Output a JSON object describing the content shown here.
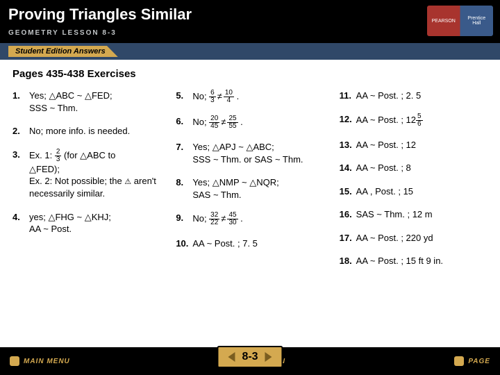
{
  "header": {
    "title": "Proving Triangles Similar",
    "subtitle": "GEOMETRY  LESSON 8-3",
    "logo_left_top": "PEARSON",
    "logo_right_top": "Prentice",
    "logo_right_bot": "Hall"
  },
  "sea_label": "Student Edition Answers",
  "pages_title": "Pages 435-438 Exercises",
  "col1": {
    "r1_num": "1.",
    "r1_a": "Yes; ",
    "r1_b": "ABC ~ ",
    "r1_c": "FED;",
    "r1_d": "SSS ~ Thm.",
    "r2_num": "2.",
    "r2_a": "No; more info. is needed.",
    "r3_num": "3.",
    "r3_a": "Ex. 1: ",
    "r3_f_top": "2",
    "r3_f_bot": "3",
    "r3_b": " (for ",
    "r3_c": "ABC to",
    "r3_d": "FED);",
    "r3_e": "Ex. 2: Not possible; the ",
    "r3_f": " aren't necessarily similar.",
    "r4_num": "4.",
    "r4_a": "yes; ",
    "r4_b": "FHG ~ ",
    "r4_c": "KHJ;",
    "r4_d": "AA ~ Post."
  },
  "col2": {
    "r5_num": "5.",
    "r5_a": "No; ",
    "r5_f1t": "6",
    "r5_f1b": "3",
    "r5_neq": "≠",
    "r5_f2t": "10",
    "r5_f2b": "4",
    "r5_end": " .",
    "r6_num": "6.",
    "r6_a": "No; ",
    "r6_f1t": "20",
    "r6_f1b": "45",
    "r6_neq": "≠",
    "r6_f2t": "25",
    "r6_f2b": "55",
    "r6_end": " .",
    "r7_num": "7.",
    "r7_a": "Yes; ",
    "r7_b": "APJ ~ ",
    "r7_c": "ABC;",
    "r7_d": "SSS ~ Thm. or SAS ~ Thm.",
    "r8_num": "8.",
    "r8_a": "Yes; ",
    "r8_b": "NMP ~ ",
    "r8_c": "NQR;",
    "r8_d": "SAS ~ Thm.",
    "r9_num": "9.",
    "r9_a": "No; ",
    "r9_f1t": "32",
    "r9_f1b": "22",
    "r9_neq": "≠",
    "r9_f2t": "45",
    "r9_f2b": "30",
    "r9_end": " .",
    "r10_num": "10.",
    "r10_a": "AA ~ Post. ; 7. 5"
  },
  "col3": {
    "r11_num": "11.",
    "r11_a": "AA ~ Post. ; 2. 5",
    "r12_num": "12.",
    "r12_a": "AA ~ Post. ; 12",
    "r12_ft": "5",
    "r12_fb": "6",
    "r13_num": "13.",
    "r13_a": "AA ~ Post. ; 12",
    "r14_num": "14.",
    "r14_a": "AA ~ Post. ; 8",
    "r15_num": "15.",
    "r15_a": "AA , Post. ; 15",
    "r16_num": "16.",
    "r16_a": "SAS ~ Thm. ; 12 m",
    "r17_num": "17.",
    "r17_a": "AA ~ Post. ; 220 yd",
    "r18_num": "18.",
    "r18_a": "AA ~ Post. ; 15 ft 9 in."
  },
  "footer": {
    "main_menu": "MAIN MENU",
    "lesson": "LESSON",
    "page": "PAGE",
    "pager": "8-3"
  },
  "colors": {
    "header_bg": "#000000",
    "accent": "#d4a950",
    "sea_bar": "#304868"
  }
}
